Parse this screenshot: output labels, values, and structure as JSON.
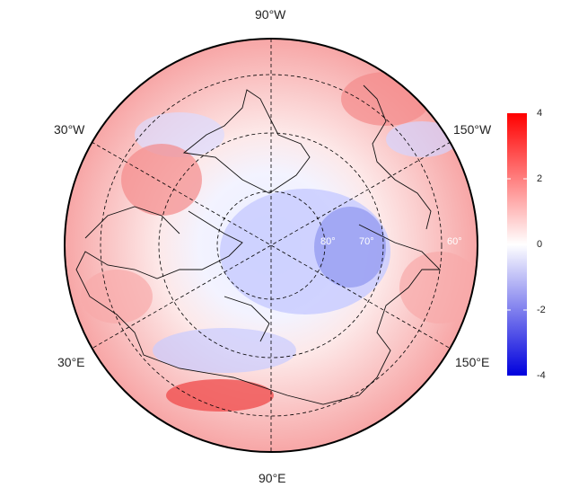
{
  "map": {
    "projection": "north-polar-stereographic",
    "graticule": "dashed",
    "longitude_labels": [
      "90°W",
      "30°W",
      "150°W",
      "30°E",
      "150°E",
      "90°E"
    ],
    "latitude_labels": [
      "60°",
      "70°",
      "80°"
    ]
  },
  "colorbar": {
    "ticks": [
      "4",
      "2",
      "0",
      "-2",
      "-4"
    ],
    "min": -4,
    "max": 4,
    "low_color": "#0000dd",
    "mid_color": "#ffffff",
    "high_color": "#ff0000"
  },
  "field": {
    "description": "gridded anomaly field, positive over North Atlantic/Greenland margins, negative over central Siberia/Arctic interior"
  }
}
